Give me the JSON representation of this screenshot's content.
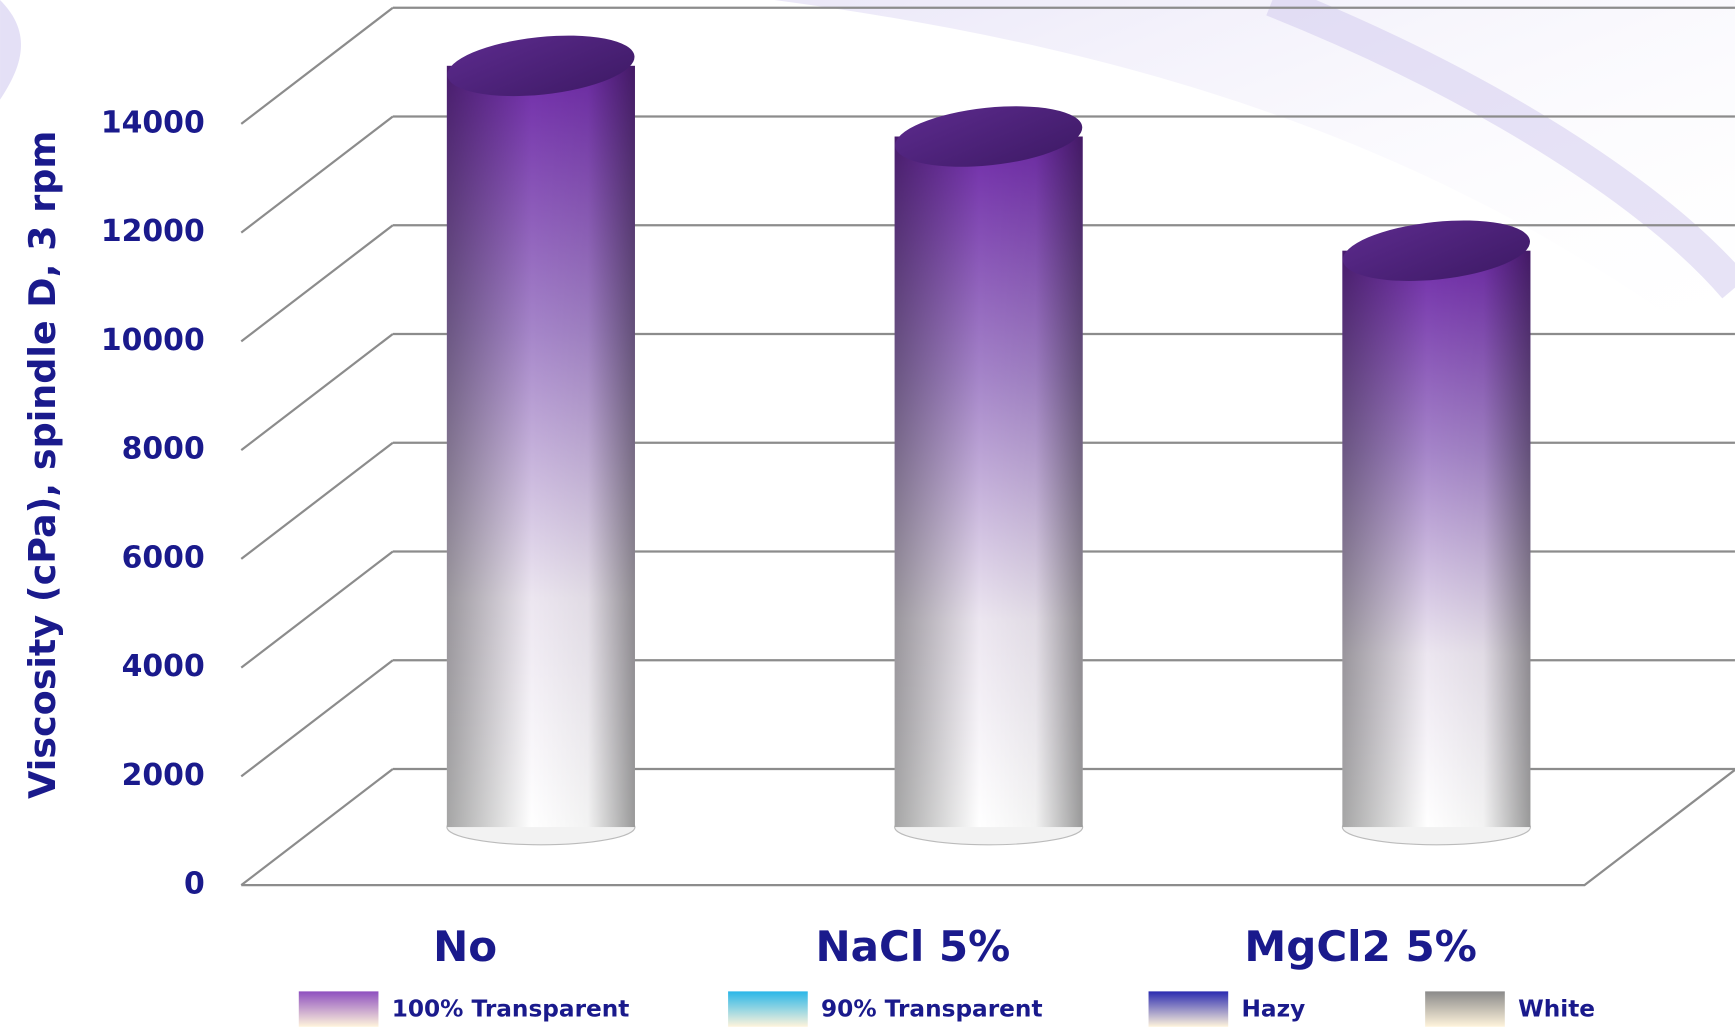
{
  "chart_data": {
    "type": "bar",
    "y_label": "Viscosity (cPa), spindle D, 3 rpm",
    "categories": [
      "No",
      "NaCl 5%",
      "MgCl2 5%"
    ],
    "values": [
      14000,
      12700,
      10600
    ],
    "color": "#7030a0",
    "ylim": [
      0,
      14000
    ],
    "yticks": [
      0,
      2000,
      4000,
      6000,
      8000,
      10000,
      12000,
      14000
    ],
    "grid": true,
    "legend": [
      {
        "name": "100% Transparent",
        "color": "#8e4fbf"
      },
      {
        "name": "90% Transparent",
        "color": "#29b6e8"
      },
      {
        "name": "Hazy",
        "color": "#2a2ab0"
      },
      {
        "name": "White",
        "color": "#8a8a8a"
      }
    ]
  }
}
